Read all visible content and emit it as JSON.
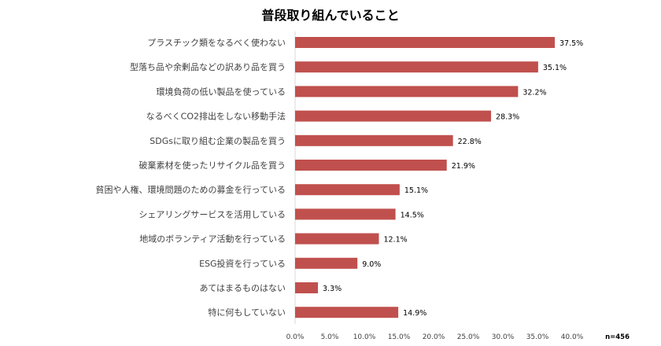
{
  "chart_data": {
    "type": "bar",
    "orientation": "horizontal",
    "title": "普段取り組んでいること",
    "note": "n=456",
    "categories": [
      "プラスチック類をなるべく使わない",
      "型落ち品や余剰品などの訳あり品を買う",
      "環境負荷の低い製品を使っている",
      "なるべくCO2排出をしない移動手法",
      "SDGsに取り組む企業の製品を買う",
      "破棄素材を使ったリサイクル品を買う",
      "貧困や人権、環境問題のための募金を行っている",
      "シェアリングサービスを活用している",
      "地域のボランティア活動を行っている",
      "ESG投資を行っている",
      "あてはまるものはない",
      "特に何もしていない"
    ],
    "values": [
      37.5,
      35.1,
      32.2,
      28.3,
      22.8,
      21.9,
      15.1,
      14.5,
      12.1,
      9.0,
      3.3,
      14.9
    ],
    "value_labels": [
      "37.5%",
      "35.1%",
      "32.2%",
      "28.3%",
      "22.8%",
      "21.9%",
      "15.1%",
      "14.5%",
      "12.1%",
      "9.0%",
      "3.3%",
      "14.9%"
    ],
    "xlim": [
      0,
      40
    ],
    "xticks": [
      "0.0%",
      "5.0%",
      "10.0%",
      "15.0%",
      "20.0%",
      "25.0%",
      "30.0%",
      "35.0%",
      "40.0%"
    ],
    "grid": false,
    "bar_color": "#c0504d"
  }
}
